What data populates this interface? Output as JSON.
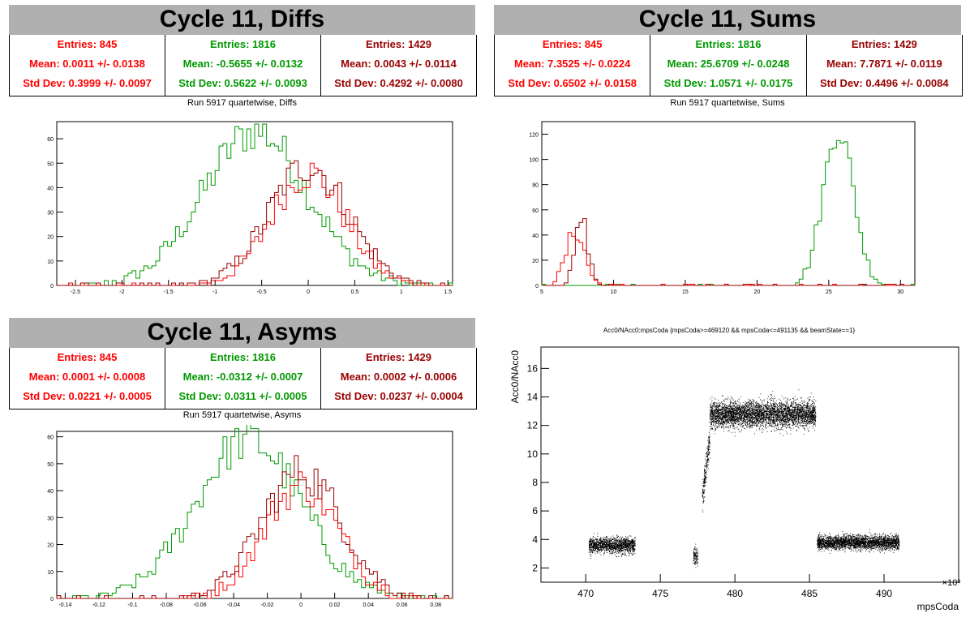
{
  "panels": {
    "diffs": {
      "title": "Cycle 11, Diffs",
      "subtitle": "Run 5917 quartetwise, Diffs",
      "stats": [
        {
          "entries": "Entries: 845",
          "mean": "Mean: 0.0011 +/- 0.0138",
          "std": "Std Dev: 0.3999 +/- 0.0097",
          "color": "#ff0000"
        },
        {
          "entries": "Entries: 1816",
          "mean": "Mean: -0.5655 +/- 0.0132",
          "std": "Std Dev: 0.5622 +/- 0.0093",
          "color": "#009900"
        },
        {
          "entries": "Entries: 1429",
          "mean": "Mean: 0.0043 +/- 0.0114",
          "std": "Std Dev: 0.4292 +/- 0.0080",
          "color": "#990000"
        }
      ]
    },
    "sums": {
      "title": "Cycle 11, Sums",
      "subtitle": "Run 5917 quartetwise, Sums",
      "stats": [
        {
          "entries": "Entries: 845",
          "mean": "Mean: 7.3525 +/- 0.0224",
          "std": "Std Dev: 0.6502 +/- 0.0158",
          "color": "#ff0000"
        },
        {
          "entries": "Entries: 1816",
          "mean": "Mean: 25.6709 +/- 0.0248",
          "std": "Std Dev: 1.0571 +/- 0.0175",
          "color": "#009900"
        },
        {
          "entries": "Entries: 1429",
          "mean": "Mean: 7.7871 +/- 0.0119",
          "std": "Std Dev: 0.4496 +/- 0.0084",
          "color": "#990000"
        }
      ]
    },
    "asyms": {
      "title": "Cycle 11, Asyms",
      "subtitle": "Run 5917 quartetwise, Asyms",
      "stats": [
        {
          "entries": "Entries: 845",
          "mean": "Mean: 0.0001 +/- 0.0008",
          "std": "Std Dev: 0.0221 +/- 0.0005",
          "color": "#ff0000"
        },
        {
          "entries": "Entries: 1816",
          "mean": "Mean: -0.0312 +/- 0.0007",
          "std": "Std Dev: 0.0311 +/- 0.0005",
          "color": "#009900"
        },
        {
          "entries": "Entries: 1429",
          "mean": "Mean: 0.0002 +/- 0.0006",
          "std": "Std Dev: 0.0237 +/- 0.0004",
          "color": "#990000"
        }
      ]
    },
    "scatter": {
      "title": "Acc0/NAcc0:mpsCoda {mpsCoda>=469120 && mpsCoda<=491135 && beamState==1}"
    }
  },
  "chart_data": [
    {
      "type": "histogram",
      "id": "diffs",
      "xlim": [
        -2.7,
        1.55
      ],
      "ylim": [
        0,
        67
      ],
      "xticks": [
        -2.5,
        -2,
        -1.5,
        -1,
        -0.5,
        0,
        0.5,
        1,
        1.5
      ],
      "xtick_labels": [
        "-2.5",
        "-2",
        "-1.5",
        "-1",
        "-0.5",
        "0",
        "0.5",
        "1",
        "1.5"
      ],
      "yticks": [
        0,
        10,
        20,
        30,
        40,
        50,
        60
      ],
      "series": [
        {
          "color": "#009900",
          "entries": 1816,
          "mean": -0.5655,
          "std": 0.5622,
          "peak": 63
        },
        {
          "color": "#ff0000",
          "entries": 845,
          "mean": 0.0011,
          "std": 0.3999,
          "peak": 46
        },
        {
          "color": "#990000",
          "entries": 1429,
          "mean": 0.0043,
          "std": 0.4292,
          "peak": 49
        }
      ]
    },
    {
      "type": "histogram",
      "id": "sums",
      "xlim": [
        5,
        31
      ],
      "ylim": [
        0,
        130
      ],
      "xticks": [
        5,
        10,
        15,
        20,
        25,
        30
      ],
      "xtick_labels": [
        "5",
        "10",
        "15",
        "20",
        "25",
        "30"
      ],
      "yticks": [
        0,
        20,
        40,
        60,
        80,
        100,
        120
      ],
      "series": [
        {
          "color": "#009900",
          "entries": 1816,
          "mean": 25.6709,
          "std": 1.0571,
          "peak": 124
        },
        {
          "color": "#ff0000",
          "entries": 845,
          "mean": 7.3525,
          "std": 0.6502,
          "peak": 43
        },
        {
          "color": "#990000",
          "entries": 1429,
          "mean": 7.7871,
          "std": 0.4496,
          "peak": 52
        }
      ]
    },
    {
      "type": "histogram",
      "id": "asyms",
      "xlim": [
        -0.145,
        0.09
      ],
      "ylim": [
        0,
        62
      ],
      "xticks": [
        -0.14,
        -0.12,
        -0.1,
        -0.08,
        -0.06,
        -0.04,
        -0.02,
        0,
        0.02,
        0.04,
        0.06,
        0.08
      ],
      "xtick_labels": [
        "-0.14",
        "-0.12",
        "-0.1",
        "-0.08",
        "-0.06",
        "-0.04",
        "-0.02",
        "0",
        "0.02",
        "0.04",
        "0.06",
        "0.08"
      ],
      "yticks": [
        0,
        10,
        20,
        30,
        40,
        50,
        60
      ],
      "series": [
        {
          "color": "#009900",
          "entries": 1816,
          "mean": -0.0312,
          "std": 0.0311,
          "peak": 59
        },
        {
          "color": "#ff0000",
          "entries": 845,
          "mean": 0.0001,
          "std": 0.0221,
          "peak": 42
        },
        {
          "color": "#990000",
          "entries": 1429,
          "mean": 0.0002,
          "std": 0.0237,
          "peak": 47
        }
      ]
    },
    {
      "type": "scatter",
      "id": "scatter",
      "xlabel": "mpsCoda",
      "ylabel": "Acc0/NAcc0",
      "xscale_label": "×10³",
      "xlim": [
        467.0,
        495.0
      ],
      "ylim": [
        1.0,
        17.5
      ],
      "xticks": [
        470,
        475,
        480,
        485,
        490
      ],
      "xtick_labels": [
        "470",
        "475",
        "480",
        "485",
        "490"
      ],
      "yticks": [
        2,
        4,
        6,
        8,
        10,
        12,
        14,
        16
      ],
      "ytick_labels": [
        "2",
        "4",
        "6",
        "8",
        "10",
        "12",
        "14",
        "16"
      ],
      "clusters": [
        {
          "x": [
            470.2,
            473.3
          ],
          "y_mean": 3.6,
          "y_spread": 0.45,
          "count": 1500
        },
        {
          "x": [
            477.2,
            477.5
          ],
          "y_mean": 2.8,
          "y_spread": 0.6,
          "count": 120
        },
        {
          "x": [
            477.8,
            478.3
          ],
          "y_mean": 8.8,
          "y_spread": 1.4,
          "count": 250
        },
        {
          "x": [
            478.3,
            485.4
          ],
          "y_mean": 12.8,
          "y_spread": 0.75,
          "count": 4500
        },
        {
          "x": [
            485.5,
            491.0
          ],
          "y_mean": 3.8,
          "y_spread": 0.4,
          "count": 3000
        }
      ]
    }
  ]
}
